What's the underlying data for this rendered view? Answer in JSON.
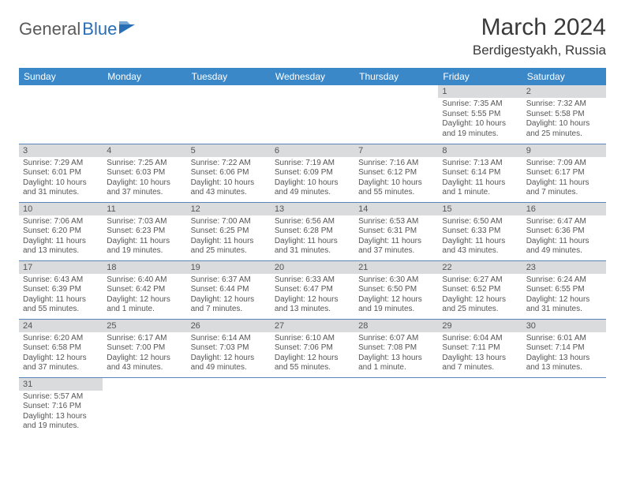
{
  "logo": {
    "textA": "General",
    "textB": "Blue"
  },
  "title": "March 2024",
  "location": "Berdigestyakh, Russia",
  "colors": {
    "header_bg": "#3b88c8",
    "header_fg": "#ffffff",
    "daybar_bg": "#dadbdc",
    "border": "#5884b8",
    "logo_blue": "#2a6fb5",
    "logo_gray": "#5a5a5a"
  },
  "dayNames": [
    "Sunday",
    "Monday",
    "Tuesday",
    "Wednesday",
    "Thursday",
    "Friday",
    "Saturday"
  ],
  "weeks": [
    [
      {
        "n": "",
        "sr": "",
        "ss": "",
        "dl": ""
      },
      {
        "n": "",
        "sr": "",
        "ss": "",
        "dl": ""
      },
      {
        "n": "",
        "sr": "",
        "ss": "",
        "dl": ""
      },
      {
        "n": "",
        "sr": "",
        "ss": "",
        "dl": ""
      },
      {
        "n": "",
        "sr": "",
        "ss": "",
        "dl": ""
      },
      {
        "n": "1",
        "sr": "Sunrise: 7:35 AM",
        "ss": "Sunset: 5:55 PM",
        "dl": "Daylight: 10 hours and 19 minutes."
      },
      {
        "n": "2",
        "sr": "Sunrise: 7:32 AM",
        "ss": "Sunset: 5:58 PM",
        "dl": "Daylight: 10 hours and 25 minutes."
      }
    ],
    [
      {
        "n": "3",
        "sr": "Sunrise: 7:29 AM",
        "ss": "Sunset: 6:01 PM",
        "dl": "Daylight: 10 hours and 31 minutes."
      },
      {
        "n": "4",
        "sr": "Sunrise: 7:25 AM",
        "ss": "Sunset: 6:03 PM",
        "dl": "Daylight: 10 hours and 37 minutes."
      },
      {
        "n": "5",
        "sr": "Sunrise: 7:22 AM",
        "ss": "Sunset: 6:06 PM",
        "dl": "Daylight: 10 hours and 43 minutes."
      },
      {
        "n": "6",
        "sr": "Sunrise: 7:19 AM",
        "ss": "Sunset: 6:09 PM",
        "dl": "Daylight: 10 hours and 49 minutes."
      },
      {
        "n": "7",
        "sr": "Sunrise: 7:16 AM",
        "ss": "Sunset: 6:12 PM",
        "dl": "Daylight: 10 hours and 55 minutes."
      },
      {
        "n": "8",
        "sr": "Sunrise: 7:13 AM",
        "ss": "Sunset: 6:14 PM",
        "dl": "Daylight: 11 hours and 1 minute."
      },
      {
        "n": "9",
        "sr": "Sunrise: 7:09 AM",
        "ss": "Sunset: 6:17 PM",
        "dl": "Daylight: 11 hours and 7 minutes."
      }
    ],
    [
      {
        "n": "10",
        "sr": "Sunrise: 7:06 AM",
        "ss": "Sunset: 6:20 PM",
        "dl": "Daylight: 11 hours and 13 minutes."
      },
      {
        "n": "11",
        "sr": "Sunrise: 7:03 AM",
        "ss": "Sunset: 6:23 PM",
        "dl": "Daylight: 11 hours and 19 minutes."
      },
      {
        "n": "12",
        "sr": "Sunrise: 7:00 AM",
        "ss": "Sunset: 6:25 PM",
        "dl": "Daylight: 11 hours and 25 minutes."
      },
      {
        "n": "13",
        "sr": "Sunrise: 6:56 AM",
        "ss": "Sunset: 6:28 PM",
        "dl": "Daylight: 11 hours and 31 minutes."
      },
      {
        "n": "14",
        "sr": "Sunrise: 6:53 AM",
        "ss": "Sunset: 6:31 PM",
        "dl": "Daylight: 11 hours and 37 minutes."
      },
      {
        "n": "15",
        "sr": "Sunrise: 6:50 AM",
        "ss": "Sunset: 6:33 PM",
        "dl": "Daylight: 11 hours and 43 minutes."
      },
      {
        "n": "16",
        "sr": "Sunrise: 6:47 AM",
        "ss": "Sunset: 6:36 PM",
        "dl": "Daylight: 11 hours and 49 minutes."
      }
    ],
    [
      {
        "n": "17",
        "sr": "Sunrise: 6:43 AM",
        "ss": "Sunset: 6:39 PM",
        "dl": "Daylight: 11 hours and 55 minutes."
      },
      {
        "n": "18",
        "sr": "Sunrise: 6:40 AM",
        "ss": "Sunset: 6:42 PM",
        "dl": "Daylight: 12 hours and 1 minute."
      },
      {
        "n": "19",
        "sr": "Sunrise: 6:37 AM",
        "ss": "Sunset: 6:44 PM",
        "dl": "Daylight: 12 hours and 7 minutes."
      },
      {
        "n": "20",
        "sr": "Sunrise: 6:33 AM",
        "ss": "Sunset: 6:47 PM",
        "dl": "Daylight: 12 hours and 13 minutes."
      },
      {
        "n": "21",
        "sr": "Sunrise: 6:30 AM",
        "ss": "Sunset: 6:50 PM",
        "dl": "Daylight: 12 hours and 19 minutes."
      },
      {
        "n": "22",
        "sr": "Sunrise: 6:27 AM",
        "ss": "Sunset: 6:52 PM",
        "dl": "Daylight: 12 hours and 25 minutes."
      },
      {
        "n": "23",
        "sr": "Sunrise: 6:24 AM",
        "ss": "Sunset: 6:55 PM",
        "dl": "Daylight: 12 hours and 31 minutes."
      }
    ],
    [
      {
        "n": "24",
        "sr": "Sunrise: 6:20 AM",
        "ss": "Sunset: 6:58 PM",
        "dl": "Daylight: 12 hours and 37 minutes."
      },
      {
        "n": "25",
        "sr": "Sunrise: 6:17 AM",
        "ss": "Sunset: 7:00 PM",
        "dl": "Daylight: 12 hours and 43 minutes."
      },
      {
        "n": "26",
        "sr": "Sunrise: 6:14 AM",
        "ss": "Sunset: 7:03 PM",
        "dl": "Daylight: 12 hours and 49 minutes."
      },
      {
        "n": "27",
        "sr": "Sunrise: 6:10 AM",
        "ss": "Sunset: 7:06 PM",
        "dl": "Daylight: 12 hours and 55 minutes."
      },
      {
        "n": "28",
        "sr": "Sunrise: 6:07 AM",
        "ss": "Sunset: 7:08 PM",
        "dl": "Daylight: 13 hours and 1 minute."
      },
      {
        "n": "29",
        "sr": "Sunrise: 6:04 AM",
        "ss": "Sunset: 7:11 PM",
        "dl": "Daylight: 13 hours and 7 minutes."
      },
      {
        "n": "30",
        "sr": "Sunrise: 6:01 AM",
        "ss": "Sunset: 7:14 PM",
        "dl": "Daylight: 13 hours and 13 minutes."
      }
    ],
    [
      {
        "n": "31",
        "sr": "Sunrise: 5:57 AM",
        "ss": "Sunset: 7:16 PM",
        "dl": "Daylight: 13 hours and 19 minutes."
      },
      {
        "n": "",
        "sr": "",
        "ss": "",
        "dl": ""
      },
      {
        "n": "",
        "sr": "",
        "ss": "",
        "dl": ""
      },
      {
        "n": "",
        "sr": "",
        "ss": "",
        "dl": ""
      },
      {
        "n": "",
        "sr": "",
        "ss": "",
        "dl": ""
      },
      {
        "n": "",
        "sr": "",
        "ss": "",
        "dl": ""
      },
      {
        "n": "",
        "sr": "",
        "ss": "",
        "dl": ""
      }
    ]
  ]
}
